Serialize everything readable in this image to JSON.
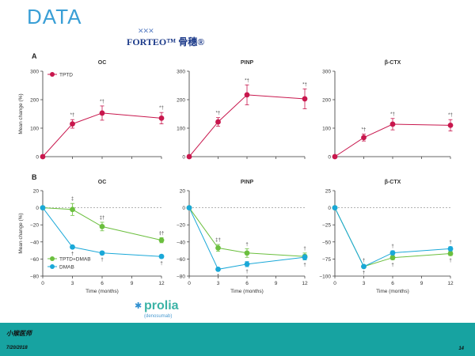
{
  "slide": {
    "title": "DATA",
    "forteo_logo_text": "FORTEO™ 骨穗®",
    "prolia_logo_text": "prolia",
    "prolia_logo_subtext": "(denosumab)",
    "footer_brand": "小猴医师",
    "footer_date": "7/20/2018",
    "page_number": "14",
    "panel_a_label": "A",
    "panel_b_label": "B"
  },
  "colors": {
    "tptd": "#c8174d",
    "combo": "#6bbf3e",
    "dmab": "#1aa8d8",
    "axis": "#333333",
    "zero_line": "#999999"
  },
  "chart_data": [
    {
      "id": "a-oc",
      "type": "line",
      "title": "OC",
      "panel": "A",
      "xlabel": "",
      "ylabel": "Mean change (%)",
      "x_ticks": [
        0,
        3,
        6,
        9,
        12
      ],
      "show_x_tick_labels": false,
      "ylim": [
        0,
        300
      ],
      "y_ticks": [
        0,
        100,
        200,
        300
      ],
      "dashed_zero": false,
      "legend": [
        "TPTD"
      ],
      "series": [
        {
          "name": "TPTD",
          "color_key": "tptd",
          "x": [
            0,
            3,
            6,
            12
          ],
          "y": [
            0,
            115,
            153,
            135
          ],
          "err": [
            0,
            15,
            25,
            20
          ],
          "annotations": [
            "",
            "*†",
            "*†",
            "*†"
          ],
          "annotation_pos": "above"
        }
      ]
    },
    {
      "id": "a-pinp",
      "type": "line",
      "title": "PINP",
      "panel": "A",
      "xlabel": "",
      "ylabel": "",
      "x_ticks": [
        0,
        3,
        6,
        9,
        12
      ],
      "show_x_tick_labels": false,
      "ylim": [
        0,
        300
      ],
      "y_ticks": [
        0,
        100,
        200,
        300
      ],
      "dashed_zero": false,
      "series": [
        {
          "name": "TPTD",
          "color_key": "tptd",
          "x": [
            0,
            3,
            6,
            12
          ],
          "y": [
            0,
            122,
            217,
            203
          ],
          "err": [
            0,
            15,
            35,
            35
          ],
          "annotations": [
            "",
            "*†",
            "*†",
            "*†"
          ],
          "annotation_pos": "above"
        }
      ]
    },
    {
      "id": "a-ctx",
      "type": "line",
      "title": "β-CTX",
      "panel": "A",
      "xlabel": "",
      "ylabel": "",
      "x_ticks": [
        0,
        3,
        6,
        9,
        12
      ],
      "show_x_tick_labels": false,
      "ylim": [
        0,
        300
      ],
      "y_ticks": [
        0,
        100,
        200,
        300
      ],
      "dashed_zero": false,
      "series": [
        {
          "name": "TPTD",
          "color_key": "tptd",
          "x": [
            0,
            3,
            6,
            12
          ],
          "y": [
            0,
            67,
            114,
            110
          ],
          "err": [
            0,
            12,
            20,
            20
          ],
          "annotations": [
            "",
            "*†",
            "*†",
            "*†"
          ],
          "annotation_pos": "above"
        }
      ]
    },
    {
      "id": "b-oc",
      "type": "line",
      "title": "OC",
      "panel": "B",
      "xlabel": "Time (months)",
      "ylabel": "Mean change (%)",
      "x_ticks": [
        0,
        3,
        6,
        9,
        12
      ],
      "show_x_tick_labels": true,
      "ylim": [
        -80,
        20
      ],
      "y_ticks": [
        -80,
        -60,
        -40,
        -20,
        0,
        20
      ],
      "dashed_zero": true,
      "legend": [
        "TPTD+DMAB",
        "DMAB"
      ],
      "series": [
        {
          "name": "TPTD+DMAB",
          "color_key": "combo",
          "x": [
            0,
            3,
            6,
            12
          ],
          "y": [
            0,
            -2,
            -22,
            -38
          ],
          "err": [
            0,
            7,
            5,
            3
          ],
          "annotations": [
            "",
            "‡",
            "‡†",
            "‡†"
          ],
          "annotation_pos": "above"
        },
        {
          "name": "DMAB",
          "color_key": "dmab",
          "x": [
            0,
            3,
            6,
            12
          ],
          "y": [
            0,
            -46,
            -53,
            -57
          ],
          "err": [
            0,
            2,
            2,
            2
          ],
          "annotations": [
            "",
            "†",
            "†",
            "†"
          ],
          "annotation_pos": "below"
        }
      ]
    },
    {
      "id": "b-pinp",
      "type": "line",
      "title": "PINP",
      "panel": "B",
      "xlabel": "Time (months)",
      "ylabel": "",
      "x_ticks": [
        0,
        3,
        6,
        9,
        12
      ],
      "show_x_tick_labels": true,
      "ylim": [
        -80,
        20
      ],
      "y_ticks": [
        -80,
        -60,
        -40,
        -20,
        0,
        20
      ],
      "dashed_zero": true,
      "series": [
        {
          "name": "TPTD+DMAB",
          "color_key": "combo",
          "x": [
            0,
            3,
            6,
            12
          ],
          "y": [
            0,
            -47,
            -53,
            -57
          ],
          "err": [
            0,
            4,
            5,
            4
          ],
          "annotations": [
            "",
            "‡†",
            "†",
            "†"
          ],
          "annotation_pos": "above"
        },
        {
          "name": "DMAB",
          "color_key": "dmab",
          "x": [
            0,
            3,
            6,
            12
          ],
          "y": [
            0,
            -72,
            -66,
            -58
          ],
          "err": [
            0,
            2,
            3,
            3
          ],
          "annotations": [
            "",
            "†",
            "†",
            "†"
          ],
          "annotation_pos": "below"
        }
      ]
    },
    {
      "id": "b-ctx",
      "type": "line",
      "title": "β-CTX",
      "panel": "B",
      "xlabel": "Time (months)",
      "ylabel": "",
      "x_ticks": [
        0,
        3,
        6,
        9,
        12
      ],
      "show_x_tick_labels": true,
      "ylim": [
        -100,
        25
      ],
      "y_ticks": [
        -100,
        -75,
        -50,
        -25,
        0,
        25
      ],
      "dashed_zero": true,
      "series": [
        {
          "name": "TPTD+DMAB",
          "color_key": "combo",
          "x": [
            0,
            3,
            6,
            12
          ],
          "y": [
            0,
            -86,
            -73,
            -67
          ],
          "err": [
            0,
            2,
            3,
            3
          ],
          "annotations": [
            "",
            "†",
            "†",
            "†"
          ],
          "annotation_pos": "below"
        },
        {
          "name": "DMAB",
          "color_key": "dmab",
          "x": [
            0,
            3,
            6,
            12
          ],
          "y": [
            0,
            -86,
            -66,
            -60
          ],
          "err": [
            0,
            2,
            3,
            3
          ],
          "annotations": [
            "",
            "†",
            "†",
            "†"
          ],
          "annotation_pos": "above"
        }
      ]
    }
  ]
}
